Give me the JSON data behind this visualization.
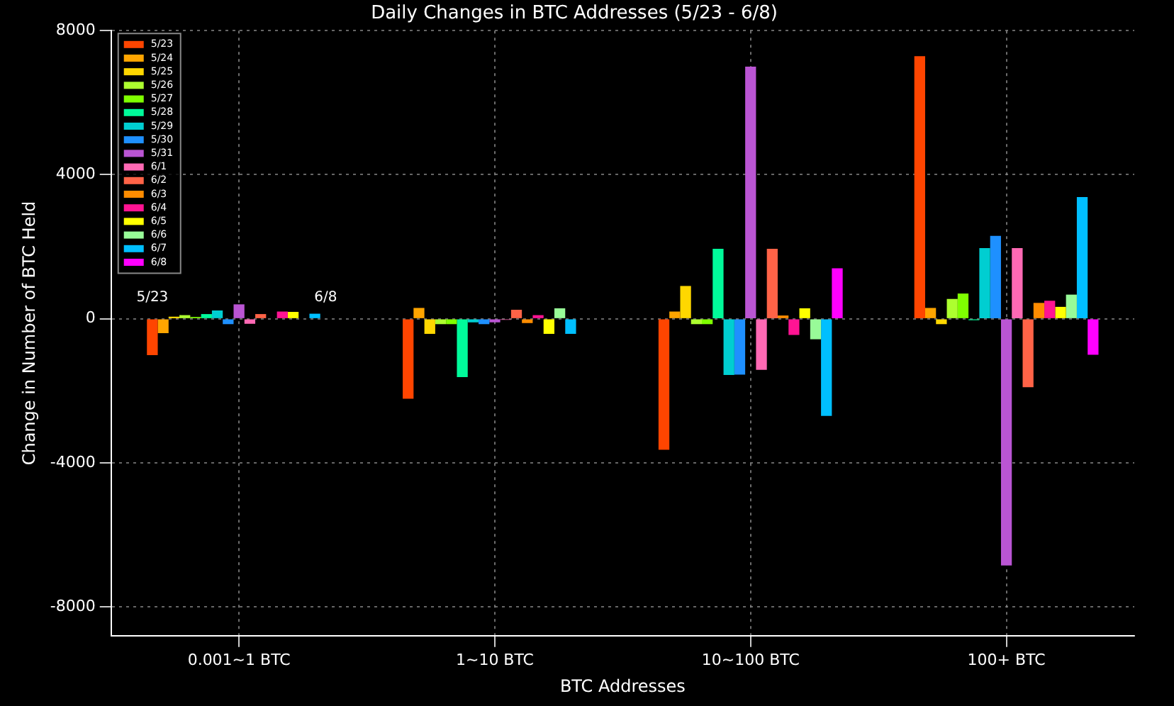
{
  "chart_data": {
    "type": "bar",
    "title": "Daily Changes in BTC Addresses (5/23 - 6/8)",
    "xlabel": "BTC Addresses",
    "ylabel": "Change in Number of BTC Held",
    "categories": [
      "0.001~1 BTC",
      "1~10 BTC",
      "10~100 BTC",
      "100+ BTC"
    ],
    "ylim": [
      -8800,
      8000
    ],
    "yticks": [
      -8000,
      -4000,
      0,
      4000,
      8000
    ],
    "grid": true,
    "legend": "top left",
    "annotations": [
      "5/23",
      "6/8"
    ],
    "series": [
      {
        "name": "5/23",
        "color": "#ff4500",
        "values": [
          -1010,
          -2220,
          -3640,
          7290
        ]
      },
      {
        "name": "5/24",
        "color": "#ffa500",
        "values": [
          -400,
          300,
          200,
          300
        ]
      },
      {
        "name": "5/25",
        "color": "#ffd700",
        "values": [
          60,
          -420,
          910,
          -150
        ]
      },
      {
        "name": "5/26",
        "color": "#adff2f",
        "values": [
          100,
          -150,
          -150,
          550
        ]
      },
      {
        "name": "5/27",
        "color": "#7fff00",
        "values": [
          50,
          -150,
          -150,
          700
        ]
      },
      {
        "name": "5/28",
        "color": "#00fa9a",
        "values": [
          130,
          -1620,
          1940,
          -40
        ]
      },
      {
        "name": "5/29",
        "color": "#00ced1",
        "values": [
          230,
          -100,
          -1560,
          1960
        ]
      },
      {
        "name": "5/30",
        "color": "#1e90ff",
        "values": [
          -150,
          -150,
          -1550,
          2300
        ]
      },
      {
        "name": "5/31",
        "color": "#ba55d3",
        "values": [
          400,
          -100,
          7000,
          -6850
        ]
      },
      {
        "name": "6/1",
        "color": "#ff69b4",
        "values": [
          -140,
          -30,
          -1420,
          1960
        ]
      },
      {
        "name": "6/2",
        "color": "#ff6347",
        "values": [
          130,
          250,
          1940,
          -1900
        ]
      },
      {
        "name": "6/3",
        "color": "#ff8c00",
        "values": [
          null,
          -120,
          90,
          440
        ]
      },
      {
        "name": "6/4",
        "color": "#ff1493",
        "values": [
          200,
          100,
          -450,
          500
        ]
      },
      {
        "name": "6/5",
        "color": "#ffff00",
        "values": [
          190,
          -420,
          290,
          330
        ]
      },
      {
        "name": "6/6",
        "color": "#98fb98",
        "values": [
          null,
          290,
          -570,
          670
        ]
      },
      {
        "name": "6/7",
        "color": "#00bfff",
        "values": [
          140,
          -420,
          -2700,
          3380
        ]
      },
      {
        "name": "6/8",
        "color": "#ff00ff",
        "values": [
          0,
          0,
          1400,
          -1000
        ]
      }
    ]
  }
}
